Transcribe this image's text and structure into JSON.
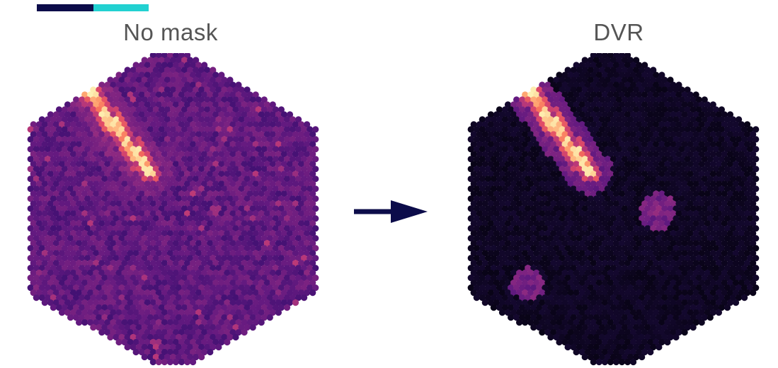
{
  "accent": {
    "dark": "#0c0c4a",
    "light": "#22d1d1"
  },
  "panels": [
    {
      "title": "No mask",
      "image": "raw-camera-hex-image",
      "background_intensity": 0.22,
      "noise": "high"
    },
    {
      "title": "DVR",
      "image": "dvr-masked-camera-hex-image",
      "background_intensity": 0.03,
      "noise": "low"
    }
  ],
  "arrow": {
    "icon": "right-arrow-icon",
    "color": "#0c0c4a"
  },
  "colormap": [
    "#000004",
    "#1d0c42",
    "#3b0f70",
    "#641a80",
    "#8c2981",
    "#b73779",
    "#de4968",
    "#f7705c",
    "#fe9f6d",
    "#fecf92",
    "#fcfdbf"
  ]
}
